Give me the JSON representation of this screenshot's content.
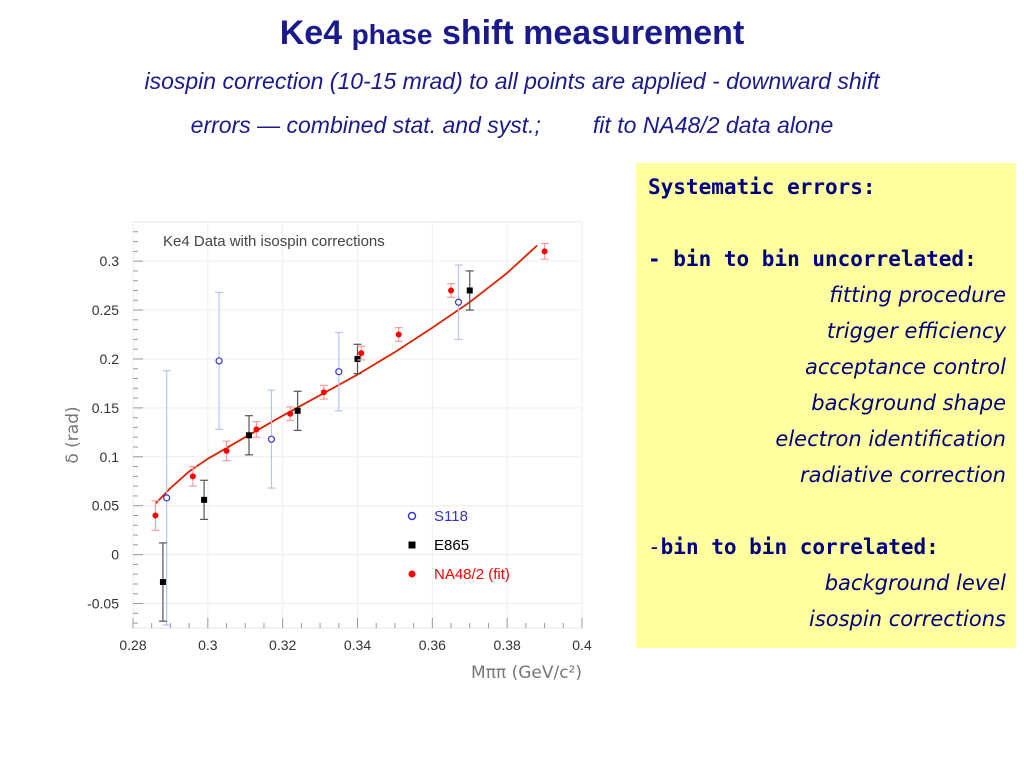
{
  "slide": {
    "title_part1": "Ke4 ",
    "title_part2": "phase",
    "title_part3": " shift measurement",
    "subtitle_line1": "isospin correction (10-15 mrad) to all points are applied - downward shift",
    "subtitle_line2a": "errors — combined stat. and syst.;",
    "subtitle_line2b": "fit to NA48/2 data alone"
  },
  "systematics": {
    "heading": "Systematic errors:",
    "uncorrelated_heading": "- bin to bin uncorrelated:",
    "uncorrelated_items": [
      "fitting procedure",
      "trigger efficiency",
      "acceptance control",
      "background shape",
      "electron identification",
      "radiative correction"
    ],
    "correlated_prefix": "-",
    "correlated_heading": "bin to bin correlated:",
    "correlated_items": [
      "background level",
      "isospin corrections"
    ]
  },
  "chart_data": {
    "type": "scatter",
    "title": "Ke4 Data with isospin corrections",
    "xlabel": "Mππ (GeV/c²)",
    "ylabel": "δ (rad)",
    "xlim": [
      0.28,
      0.4
    ],
    "ylim": [
      -0.075,
      0.34
    ],
    "x_ticks": [
      "0.28",
      "0.3",
      "0.32",
      "0.34",
      "0.36",
      "0.38",
      "0.4"
    ],
    "y_ticks": [
      "-0.05",
      "0",
      "0.05",
      "0.1",
      "0.15",
      "0.2",
      "0.25",
      "0.3"
    ],
    "legend_position": "bottom-right",
    "series": [
      {
        "name": "S118",
        "color": "#3333cc",
        "marker": "open-circle",
        "points": [
          {
            "x": 0.289,
            "y": 0.058,
            "err": 0.13
          },
          {
            "x": 0.303,
            "y": 0.198,
            "err": 0.07
          },
          {
            "x": 0.317,
            "y": 0.118,
            "err": 0.05
          },
          {
            "x": 0.335,
            "y": 0.187,
            "err": 0.04
          },
          {
            "x": 0.367,
            "y": 0.258,
            "err": 0.038
          }
        ]
      },
      {
        "name": "E865",
        "color": "#000000",
        "marker": "filled-square",
        "points": [
          {
            "x": 0.288,
            "y": -0.028,
            "err": 0.04
          },
          {
            "x": 0.299,
            "y": 0.056,
            "err": 0.02
          },
          {
            "x": 0.311,
            "y": 0.122,
            "err": 0.02
          },
          {
            "x": 0.324,
            "y": 0.147,
            "err": 0.02
          },
          {
            "x": 0.34,
            "y": 0.2,
            "err": 0.015
          },
          {
            "x": 0.37,
            "y": 0.27,
            "err": 0.02
          }
        ]
      },
      {
        "name": "NA48/2 (fit)",
        "color": "#ff0000",
        "marker": "filled-circle",
        "points": [
          {
            "x": 0.286,
            "y": 0.04,
            "err": 0.015
          },
          {
            "x": 0.296,
            "y": 0.08,
            "err": 0.01
          },
          {
            "x": 0.305,
            "y": 0.106,
            "err": 0.01
          },
          {
            "x": 0.313,
            "y": 0.128,
            "err": 0.008
          },
          {
            "x": 0.322,
            "y": 0.144,
            "err": 0.007
          },
          {
            "x": 0.331,
            "y": 0.166,
            "err": 0.007
          },
          {
            "x": 0.341,
            "y": 0.206,
            "err": 0.007
          },
          {
            "x": 0.351,
            "y": 0.225,
            "err": 0.007
          },
          {
            "x": 0.365,
            "y": 0.27,
            "err": 0.007
          },
          {
            "x": 0.39,
            "y": 0.31,
            "err": 0.008
          }
        ]
      }
    ],
    "fit_curve": {
      "color": "#dd2200",
      "x": [
        0.286,
        0.29,
        0.295,
        0.3,
        0.31,
        0.32,
        0.33,
        0.34,
        0.35,
        0.36,
        0.37,
        0.38,
        0.388
      ],
      "y": [
        0.052,
        0.068,
        0.085,
        0.098,
        0.12,
        0.142,
        0.163,
        0.184,
        0.207,
        0.232,
        0.258,
        0.288,
        0.316
      ]
    }
  }
}
